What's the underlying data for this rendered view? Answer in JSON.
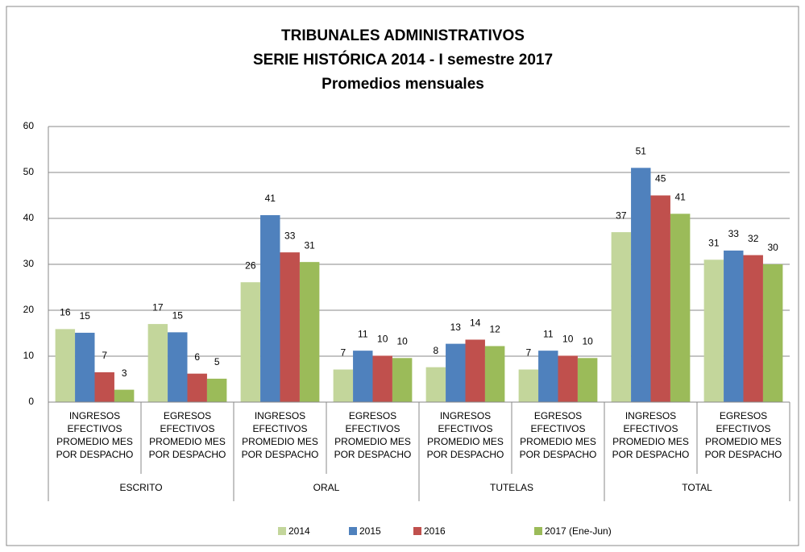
{
  "chart_data": {
    "type": "bar",
    "title": [
      "TRIBUNALES ADMINISTRATIVOS",
      "SERIE HISTÓRICA 2014 - I semestre 2017",
      "Promedios mensuales"
    ],
    "groups": [
      "ESCRITO",
      "ORAL",
      "TUTELAS",
      "TOTAL"
    ],
    "categories": [
      "INGRESOS EFECTIVOS PROMEDIO MES POR DESPACHO",
      "EGRESOS EFECTIVOS PROMEDIO MES POR DESPACHO",
      "INGRESOS EFECTIVOS PROMEDIO MES POR DESPACHO",
      "EGRESOS EFECTIVOS PROMEDIO MES POR DESPACHO",
      "INGRESOS EFECTIVOS PROMEDIO MES POR DESPACHO",
      "EGRESOS EFECTIVOS PROMEDIO MES POR DESPACHO",
      "INGRESOS EFECTIVOS PROMEDIO MES POR DESPACHO",
      "EGRESOS EFECTIVOS PROMEDIO MES POR DESPACHO"
    ],
    "series": [
      {
        "name": "2014",
        "color": "#c3d69b",
        "values": [
          15.9,
          17,
          26.1,
          7.1,
          7.6,
          7.1,
          37,
          31
        ],
        "value_labels": [
          "16",
          "17",
          "26",
          "7",
          "8",
          "7",
          "37",
          "31"
        ]
      },
      {
        "name": "2015",
        "color": "#4f81bd",
        "values": [
          15.1,
          15.2,
          40.7,
          11.2,
          12.7,
          11.2,
          51,
          33
        ],
        "value_labels": [
          "15",
          "15",
          "41",
          "11",
          "13",
          "11",
          "51",
          "33"
        ]
      },
      {
        "name": "2016",
        "color": "#c0504d",
        "values": [
          6.5,
          6.2,
          32.6,
          10.1,
          13.6,
          10.1,
          45,
          32
        ],
        "value_labels": [
          "7",
          "6",
          "33",
          "10",
          "14",
          "10",
          "45",
          "32"
        ]
      },
      {
        "name": "2017 (Ene-Jun)",
        "color": "#9bbb59",
        "values": [
          2.7,
          5.1,
          30.5,
          9.6,
          12.2,
          9.6,
          41,
          30
        ],
        "value_labels": [
          "3",
          "5",
          "31",
          "10",
          "12",
          "10",
          "41",
          "30"
        ]
      }
    ],
    "ylim": [
      0,
      60
    ],
    "yticks": [
      0,
      10,
      20,
      30,
      40,
      50,
      60
    ],
    "grid": true,
    "legend": "bottom"
  }
}
